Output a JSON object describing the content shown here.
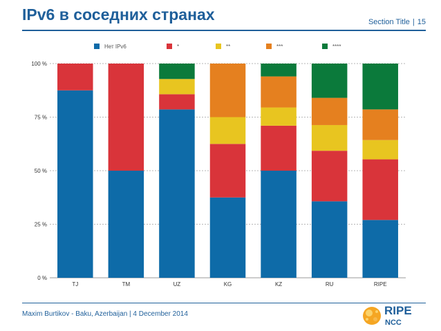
{
  "header": {
    "title": "IPv6 в соседних странах",
    "section_label": "Section Title",
    "separator": "|",
    "page_number": "15"
  },
  "footer": {
    "text": "Maxim Burtikov - Baku, Azerbaijan | 4 December 2014"
  },
  "logo": {
    "line1": "RIPE",
    "line2": "NCC"
  },
  "colors": {
    "brand": "#1f5f9a",
    "series": [
      "#0e6ba8",
      "#d9343a",
      "#e8c520",
      "#e5801f",
      "#0b7a3b"
    ]
  },
  "chart_data": {
    "type": "bar",
    "stacked": true,
    "title": "",
    "xlabel": "",
    "ylabel": "",
    "ylim": [
      0,
      100
    ],
    "y_ticks": [
      "0 %",
      "25 %",
      "50 %",
      "75 %",
      "100 %"
    ],
    "y_tick_values": [
      0,
      25,
      50,
      75,
      100
    ],
    "grid": true,
    "legend_position": "top",
    "categories": [
      "TJ",
      "TM",
      "UZ",
      "KG",
      "KZ",
      "RU",
      "RIPE"
    ],
    "series": [
      {
        "name": "Нет IPv6",
        "values": [
          87.5,
          50,
          78.6,
          37.5,
          50,
          35.7,
          27
        ]
      },
      {
        "name": "*",
        "values": [
          12.5,
          50,
          7.1,
          25,
          21,
          23.6,
          28.3
        ]
      },
      {
        "name": "**",
        "values": [
          0,
          0,
          7.1,
          12.5,
          8.5,
          12,
          9
        ]
      },
      {
        "name": "***",
        "values": [
          0,
          0,
          0,
          25,
          14.5,
          12.7,
          14.3
        ]
      },
      {
        "name": "****",
        "values": [
          0,
          0,
          7.2,
          0,
          6,
          16,
          21.4
        ]
      }
    ]
  }
}
